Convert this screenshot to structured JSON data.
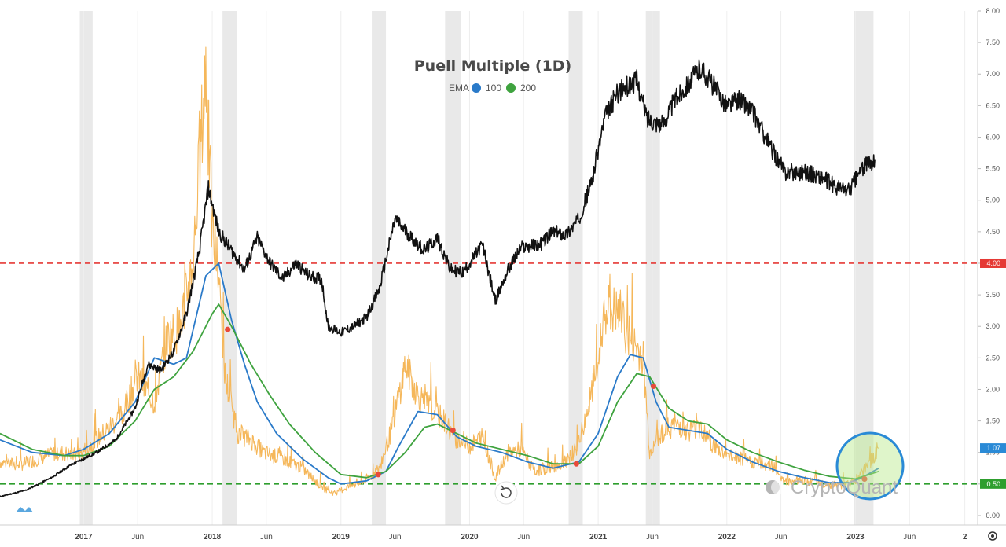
{
  "toolbar": {
    "interval_value": "4"
  },
  "colors": {
    "price": "#111111",
    "puell": "#f5b75a",
    "ema100": "#2a7ac9",
    "ema200": "#3fa33f",
    "high_line": "#e53935",
    "low_line": "#2e9e2e",
    "cross": "#e84a3a",
    "band": "#e9e9e9",
    "current_badge": "#2a8ad6",
    "highlight": "#2a8ad6"
  },
  "chart_data": {
    "type": "line",
    "title": "Puell Multiple (1D)",
    "legend": {
      "prefix": "EMA",
      "items": [
        "100",
        "200"
      ]
    },
    "y_right": {
      "min": -0.15,
      "max": 8.0,
      "ticks": [
        "0.00",
        "0.50",
        "1.00",
        "1.50",
        "2.00",
        "2.50",
        "3.00",
        "3.50",
        "4.00",
        "4.50",
        "5.00",
        "5.50",
        "6.00",
        "6.50",
        "7.00",
        "7.50",
        "8.00"
      ]
    },
    "x_range": [
      2016.35,
      2023.95
    ],
    "x_ticks": [
      {
        "label": "2017",
        "year": true,
        "t": 2017.0
      },
      {
        "label": "Jun",
        "year": false,
        "t": 2017.42
      },
      {
        "label": "2018",
        "year": true,
        "t": 2018.0
      },
      {
        "label": "Jun",
        "year": false,
        "t": 2018.42
      },
      {
        "label": "2019",
        "year": true,
        "t": 2019.0
      },
      {
        "label": "Jun",
        "year": false,
        "t": 2019.42
      },
      {
        "label": "2020",
        "year": true,
        "t": 2020.0
      },
      {
        "label": "Jun",
        "year": false,
        "t": 2020.42
      },
      {
        "label": "2021",
        "year": true,
        "t": 2021.0
      },
      {
        "label": "Jun",
        "year": false,
        "t": 2021.42
      },
      {
        "label": "2022",
        "year": true,
        "t": 2022.0
      },
      {
        "label": "Jun",
        "year": false,
        "t": 2022.42
      },
      {
        "label": "2023",
        "year": true,
        "t": 2023.0
      },
      {
        "label": "Jun",
        "year": false,
        "t": 2023.42
      },
      {
        "label": "2",
        "year": true,
        "t": 2023.85
      }
    ],
    "reference_lines": [
      {
        "name": "high",
        "value": 4.0,
        "label": "4.00"
      },
      {
        "name": "low",
        "value": 0.5,
        "label": "0.50"
      }
    ],
    "current_value": {
      "value": 1.07,
      "label": "1.07"
    },
    "shaded_periods": [
      [
        2016.97,
        2017.07
      ],
      [
        2018.08,
        2018.19
      ],
      [
        2019.24,
        2019.35
      ],
      [
        2019.81,
        2019.93
      ],
      [
        2020.77,
        2020.88
      ],
      [
        2021.37,
        2021.48
      ],
      [
        2022.99,
        2023.14
      ]
    ],
    "series": [
      {
        "name": "Puell Multiple",
        "color_key": "puell",
        "values": [
          [
            2016.35,
            0.85
          ],
          [
            2016.5,
            0.8
          ],
          [
            2016.65,
            0.9
          ],
          [
            2016.8,
            1.0
          ],
          [
            2016.95,
            0.95
          ],
          [
            2017.05,
            1.1
          ],
          [
            2017.15,
            1.3
          ],
          [
            2017.3,
            1.6
          ],
          [
            2017.42,
            2.2
          ],
          [
            2017.55,
            1.8
          ],
          [
            2017.65,
            2.8
          ],
          [
            2017.75,
            3.0
          ],
          [
            2017.85,
            4.0
          ],
          [
            2017.95,
            7.1
          ],
          [
            2018.0,
            4.5
          ],
          [
            2018.05,
            3.8
          ],
          [
            2018.1,
            2.2
          ],
          [
            2018.2,
            1.3
          ],
          [
            2018.3,
            1.2
          ],
          [
            2018.4,
            1.0
          ],
          [
            2018.55,
            0.9
          ],
          [
            2018.7,
            0.75
          ],
          [
            2018.85,
            0.45
          ],
          [
            2018.95,
            0.35
          ],
          [
            2019.05,
            0.45
          ],
          [
            2019.2,
            0.55
          ],
          [
            2019.3,
            0.75
          ],
          [
            2019.4,
            1.4
          ],
          [
            2019.5,
            2.4
          ],
          [
            2019.6,
            1.9
          ],
          [
            2019.7,
            1.7
          ],
          [
            2019.8,
            1.5
          ],
          [
            2019.9,
            1.2
          ],
          [
            2020.0,
            1.1
          ],
          [
            2020.1,
            1.25
          ],
          [
            2020.2,
            0.6
          ],
          [
            2020.3,
            1.0
          ],
          [
            2020.4,
            1.05
          ],
          [
            2020.5,
            0.7
          ],
          [
            2020.6,
            0.75
          ],
          [
            2020.7,
            0.8
          ],
          [
            2020.8,
            0.9
          ],
          [
            2020.9,
            1.5
          ],
          [
            2021.0,
            2.4
          ],
          [
            2021.05,
            3.3
          ],
          [
            2021.15,
            3.2
          ],
          [
            2021.25,
            2.8
          ],
          [
            2021.35,
            2.5
          ],
          [
            2021.4,
            1.0
          ],
          [
            2021.48,
            1.3
          ],
          [
            2021.6,
            1.45
          ],
          [
            2021.7,
            1.35
          ],
          [
            2021.8,
            1.4
          ],
          [
            2021.9,
            1.1
          ],
          [
            2022.0,
            0.95
          ],
          [
            2022.2,
            0.85
          ],
          [
            2022.35,
            0.8
          ],
          [
            2022.45,
            0.55
          ],
          [
            2022.6,
            0.55
          ],
          [
            2022.75,
            0.5
          ],
          [
            2022.9,
            0.48
          ],
          [
            2023.0,
            0.55
          ],
          [
            2023.1,
            0.8
          ],
          [
            2023.18,
            1.07
          ]
        ]
      },
      {
        "name": "EMA 100",
        "color_key": "ema100",
        "values": [
          [
            2016.35,
            1.2
          ],
          [
            2016.6,
            1.0
          ],
          [
            2016.85,
            0.95
          ],
          [
            2017.0,
            1.05
          ],
          [
            2017.2,
            1.3
          ],
          [
            2017.4,
            1.8
          ],
          [
            2017.55,
            2.5
          ],
          [
            2017.7,
            2.4
          ],
          [
            2017.8,
            2.5
          ],
          [
            2017.95,
            3.8
          ],
          [
            2018.05,
            4.0
          ],
          [
            2018.15,
            3.1
          ],
          [
            2018.25,
            2.4
          ],
          [
            2018.35,
            1.8
          ],
          [
            2018.5,
            1.3
          ],
          [
            2018.7,
            0.9
          ],
          [
            2018.9,
            0.6
          ],
          [
            2019.0,
            0.5
          ],
          [
            2019.2,
            0.55
          ],
          [
            2019.35,
            0.7
          ],
          [
            2019.45,
            1.1
          ],
          [
            2019.6,
            1.65
          ],
          [
            2019.75,
            1.6
          ],
          [
            2019.9,
            1.25
          ],
          [
            2020.05,
            1.1
          ],
          [
            2020.25,
            1.0
          ],
          [
            2020.45,
            0.85
          ],
          [
            2020.65,
            0.75
          ],
          [
            2020.85,
            0.85
          ],
          [
            2021.0,
            1.3
          ],
          [
            2021.15,
            2.2
          ],
          [
            2021.25,
            2.55
          ],
          [
            2021.35,
            2.5
          ],
          [
            2021.45,
            1.8
          ],
          [
            2021.55,
            1.4
          ],
          [
            2021.7,
            1.35
          ],
          [
            2021.85,
            1.3
          ],
          [
            2022.0,
            1.05
          ],
          [
            2022.2,
            0.85
          ],
          [
            2022.4,
            0.7
          ],
          [
            2022.6,
            0.6
          ],
          [
            2022.8,
            0.52
          ],
          [
            2022.95,
            0.52
          ],
          [
            2023.05,
            0.6
          ],
          [
            2023.18,
            0.75
          ]
        ]
      },
      {
        "name": "EMA 200",
        "color_key": "ema200",
        "values": [
          [
            2016.35,
            1.3
          ],
          [
            2016.6,
            1.05
          ],
          [
            2016.85,
            0.95
          ],
          [
            2017.0,
            0.95
          ],
          [
            2017.2,
            1.1
          ],
          [
            2017.4,
            1.5
          ],
          [
            2017.55,
            2.0
          ],
          [
            2017.7,
            2.2
          ],
          [
            2017.85,
            2.6
          ],
          [
            2018.0,
            3.2
          ],
          [
            2018.05,
            3.35
          ],
          [
            2018.15,
            3.0
          ],
          [
            2018.3,
            2.4
          ],
          [
            2018.45,
            1.9
          ],
          [
            2018.6,
            1.45
          ],
          [
            2018.8,
            1.0
          ],
          [
            2019.0,
            0.65
          ],
          [
            2019.2,
            0.6
          ],
          [
            2019.35,
            0.7
          ],
          [
            2019.5,
            1.0
          ],
          [
            2019.65,
            1.4
          ],
          [
            2019.75,
            1.45
          ],
          [
            2019.9,
            1.3
          ],
          [
            2020.05,
            1.15
          ],
          [
            2020.25,
            1.05
          ],
          [
            2020.45,
            0.95
          ],
          [
            2020.65,
            0.82
          ],
          [
            2020.85,
            0.82
          ],
          [
            2021.0,
            1.1
          ],
          [
            2021.15,
            1.8
          ],
          [
            2021.3,
            2.25
          ],
          [
            2021.4,
            2.2
          ],
          [
            2021.55,
            1.7
          ],
          [
            2021.7,
            1.5
          ],
          [
            2021.85,
            1.45
          ],
          [
            2022.0,
            1.2
          ],
          [
            2022.2,
            1.0
          ],
          [
            2022.4,
            0.85
          ],
          [
            2022.6,
            0.72
          ],
          [
            2022.8,
            0.62
          ],
          [
            2023.0,
            0.58
          ],
          [
            2023.18,
            0.7
          ]
        ]
      },
      {
        "name": "Price",
        "color_key": "price",
        "values": [
          [
            2016.35,
            0.3
          ],
          [
            2016.55,
            0.4
          ],
          [
            2016.75,
            0.6
          ],
          [
            2016.9,
            0.8
          ],
          [
            2017.0,
            0.9
          ],
          [
            2017.1,
            1.0
          ],
          [
            2017.25,
            1.2
          ],
          [
            2017.4,
            1.7
          ],
          [
            2017.5,
            2.4
          ],
          [
            2017.6,
            2.3
          ],
          [
            2017.7,
            2.6
          ],
          [
            2017.8,
            3.2
          ],
          [
            2017.9,
            4.2
          ],
          [
            2017.97,
            5.2
          ],
          [
            2018.05,
            4.5
          ],
          [
            2018.15,
            4.2
          ],
          [
            2018.25,
            3.9
          ],
          [
            2018.35,
            4.4
          ],
          [
            2018.45,
            4.0
          ],
          [
            2018.55,
            3.75
          ],
          [
            2018.65,
            4.0
          ],
          [
            2018.75,
            3.8
          ],
          [
            2018.85,
            3.75
          ],
          [
            2018.9,
            3.0
          ],
          [
            2019.0,
            2.9
          ],
          [
            2019.1,
            3.0
          ],
          [
            2019.2,
            3.15
          ],
          [
            2019.3,
            3.6
          ],
          [
            2019.42,
            4.7
          ],
          [
            2019.55,
            4.4
          ],
          [
            2019.65,
            4.2
          ],
          [
            2019.75,
            4.4
          ],
          [
            2019.85,
            3.9
          ],
          [
            2019.95,
            3.85
          ],
          [
            2020.1,
            4.3
          ],
          [
            2020.2,
            3.4
          ],
          [
            2020.3,
            3.9
          ],
          [
            2020.4,
            4.25
          ],
          [
            2020.55,
            4.3
          ],
          [
            2020.65,
            4.5
          ],
          [
            2020.75,
            4.45
          ],
          [
            2020.85,
            4.7
          ],
          [
            2020.95,
            5.3
          ],
          [
            2021.05,
            6.3
          ],
          [
            2021.15,
            6.7
          ],
          [
            2021.3,
            6.9
          ],
          [
            2021.38,
            6.3
          ],
          [
            2021.5,
            6.2
          ],
          [
            2021.6,
            6.6
          ],
          [
            2021.72,
            6.9
          ],
          [
            2021.8,
            7.1
          ],
          [
            2021.9,
            6.8
          ],
          [
            2022.0,
            6.5
          ],
          [
            2022.1,
            6.6
          ],
          [
            2022.2,
            6.4
          ],
          [
            2022.35,
            5.8
          ],
          [
            2022.45,
            5.45
          ],
          [
            2022.6,
            5.45
          ],
          [
            2022.75,
            5.35
          ],
          [
            2022.85,
            5.2
          ],
          [
            2022.95,
            5.15
          ],
          [
            2023.05,
            5.5
          ],
          [
            2023.15,
            5.65
          ]
        ]
      }
    ],
    "crossings": [
      [
        2018.12,
        2.95
      ],
      [
        2019.29,
        0.65
      ],
      [
        2019.87,
        1.35
      ],
      [
        2020.83,
        0.82
      ],
      [
        2021.43,
        2.05
      ],
      [
        2023.07,
        0.58
      ]
    ]
  },
  "watermark": {
    "brand": "CryptoQuant"
  }
}
